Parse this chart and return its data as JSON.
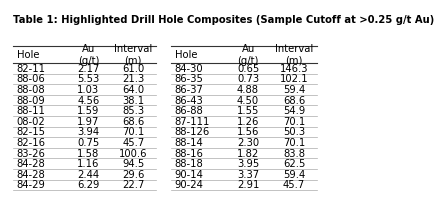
{
  "title": "Table 1: Highlighted Drill Hole Composites (Sample Cutoff at >0.25 g/t Au)",
  "left_headers": [
    "Hole",
    "Au\n(g/t)",
    "Interval\n(m)"
  ],
  "left_rows": [
    [
      "82-11",
      "2.17",
      "61.0"
    ],
    [
      "88-06",
      "5.53",
      "21.3"
    ],
    [
      "88-08",
      "1.03",
      "64.0"
    ],
    [
      "88-09",
      "4.56",
      "38.1"
    ],
    [
      "88-11",
      "1.59",
      "85.3"
    ],
    [
      "08-02",
      "1.97",
      "68.6"
    ],
    [
      "82-15",
      "3.94",
      "70.1"
    ],
    [
      "82-16",
      "0.75",
      "45.7"
    ],
    [
      "83-26",
      "1.58",
      "100.6"
    ],
    [
      "84-28",
      "1.16",
      "94.5"
    ],
    [
      "84-28",
      "2.44",
      "29.6"
    ],
    [
      "84-29",
      "6.29",
      "22.7"
    ]
  ],
  "right_headers": [
    "Hole",
    "Au\n(g/t)",
    "Interval\n(m)"
  ],
  "right_rows": [
    [
      "84-30",
      "0.65",
      "146.3"
    ],
    [
      "86-35",
      "0.73",
      "102.1"
    ],
    [
      "86-37",
      "4.88",
      "59.4"
    ],
    [
      "86-43",
      "4.50",
      "68.6"
    ],
    [
      "86-88",
      "1.55",
      "54.9"
    ],
    [
      "87-111",
      "1.26",
      "70.1"
    ],
    [
      "88-126",
      "1.56",
      "50.3"
    ],
    [
      "88-14",
      "2.30",
      "70.1"
    ],
    [
      "88-16",
      "1.82",
      "83.8"
    ],
    [
      "88-18",
      "3.95",
      "62.5"
    ],
    [
      "90-14",
      "3.37",
      "59.4"
    ],
    [
      "90-24",
      "2.91",
      "45.7"
    ]
  ],
  "bg_color": "#ffffff",
  "text_color": "#000000",
  "line_color": "#aaaaaa",
  "dark_line_color": "#333333",
  "title_fontsize": 7.2,
  "cell_fontsize": 7.2
}
